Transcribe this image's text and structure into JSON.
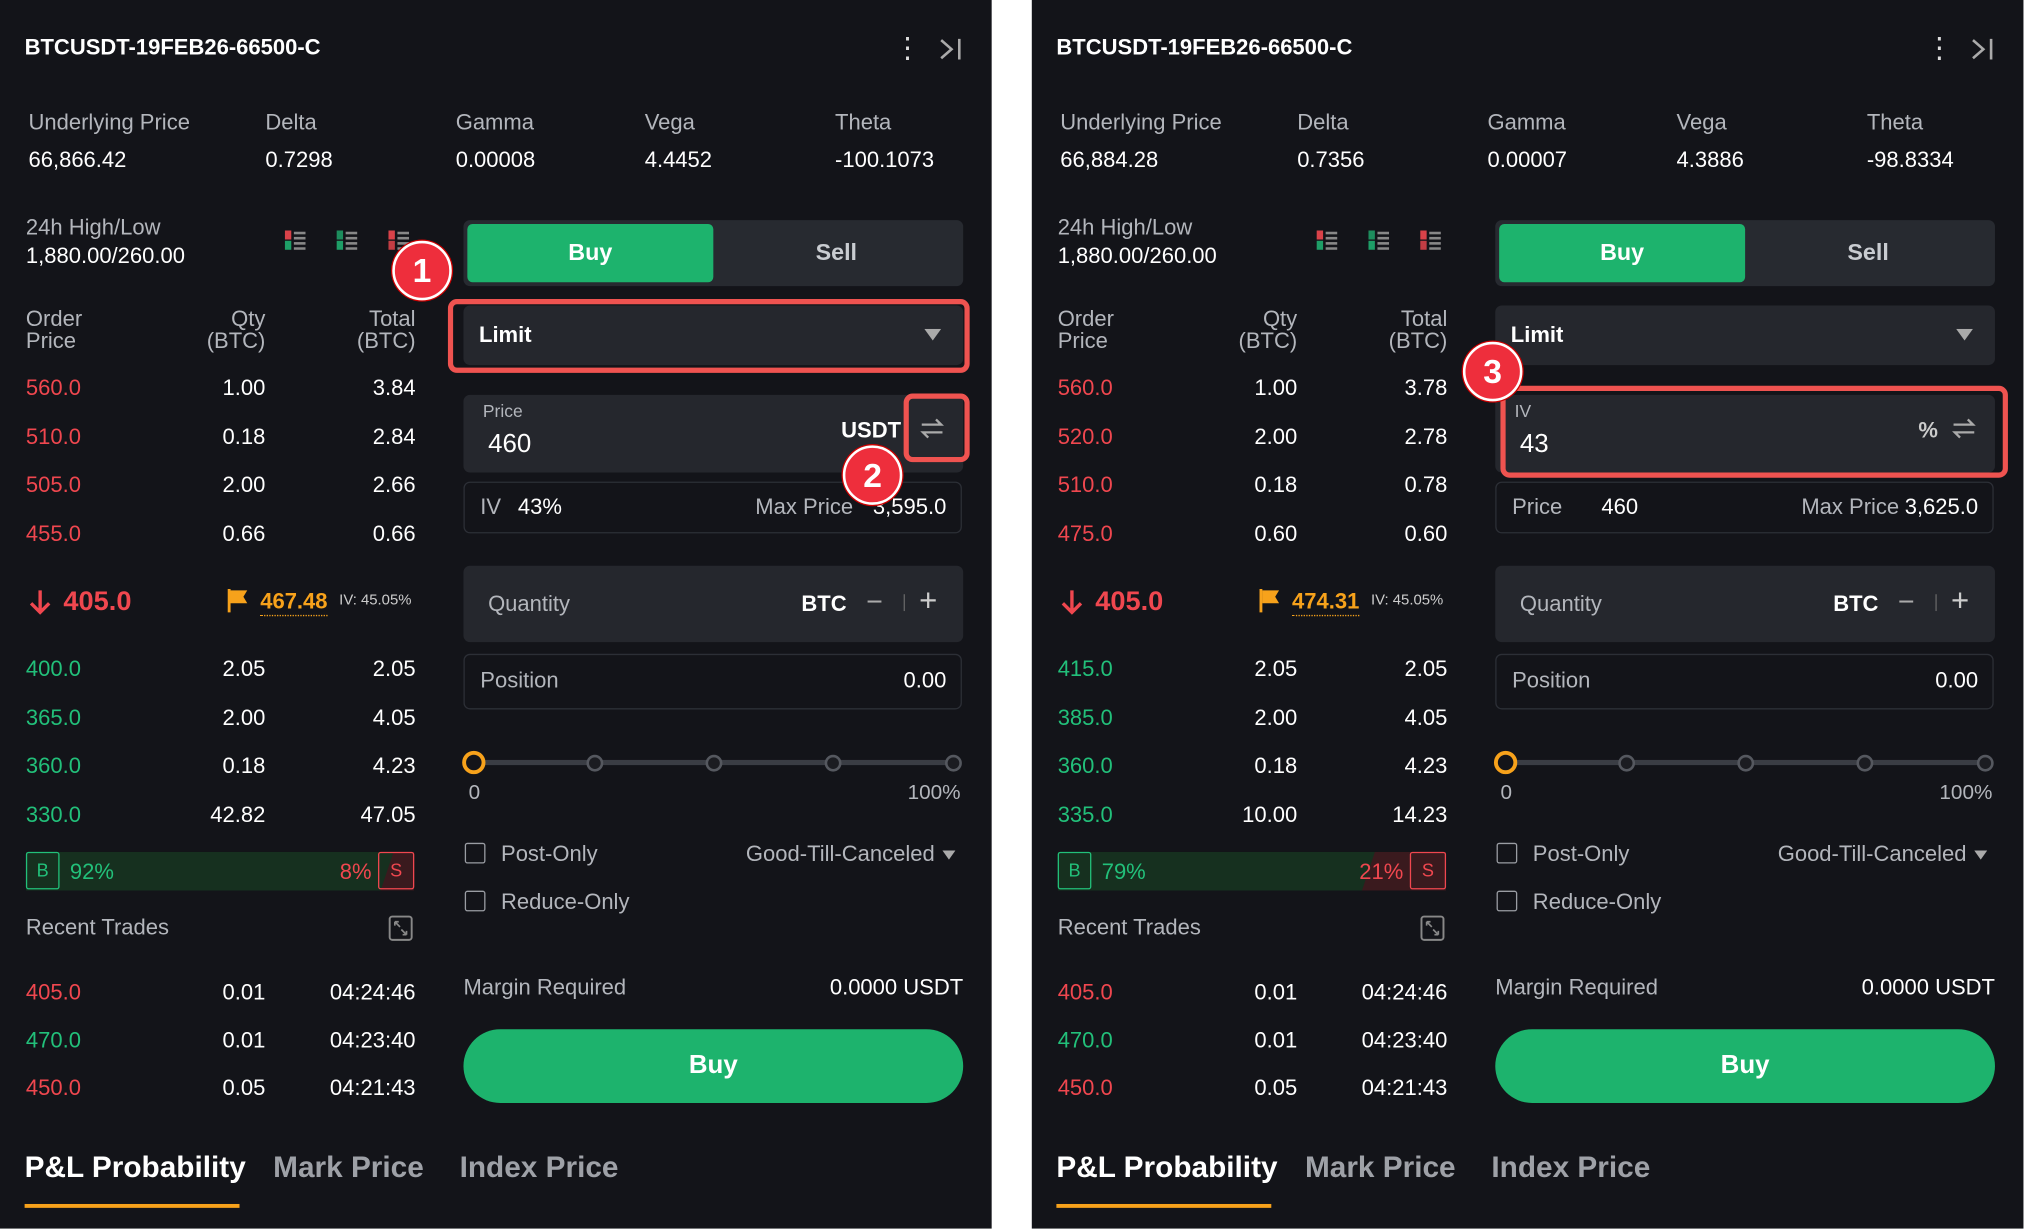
{
  "colors": {
    "buy": "#1db36d",
    "sell_red": "#f0474f",
    "mark_orange": "#f7a21b",
    "annotation": "#ef5350",
    "panel_bg": "#131419"
  },
  "icons": {
    "more": "kebab-vertical-icon",
    "collapse": "collapse-right-icon",
    "swap": "swap-arrows-icon",
    "flag": "flag-icon",
    "down": "arrow-down-icon",
    "expand": "expand-icon",
    "dropdown": "caret-down-icon"
  },
  "panels": [
    {
      "title": "BTCUSDT-19FEB26-66500-C",
      "stats": [
        {
          "label": "Underlying Price",
          "value": "66,866.42"
        },
        {
          "label": "Delta",
          "value": "0.7298"
        },
        {
          "label": "Gamma",
          "value": "0.00008"
        },
        {
          "label": "Vega",
          "value": "4.4452"
        },
        {
          "label": "Theta",
          "value": "-100.1073"
        }
      ],
      "high_low": {
        "label": "24h High/Low",
        "value": "1,880.00/260.00"
      },
      "book_headers": {
        "price1": "Order",
        "price2": "Price",
        "qty1": "Qty",
        "qty2": "(BTC)",
        "total1": "Total",
        "total2": "(BTC)"
      },
      "asks": [
        [
          "560.0",
          "1.00",
          "3.84"
        ],
        [
          "510.0",
          "0.18",
          "2.84"
        ],
        [
          "505.0",
          "2.00",
          "2.66"
        ],
        [
          "455.0",
          "0.66",
          "0.66"
        ]
      ],
      "last_price": "405.0",
      "mark_price": "467.48",
      "mark_iv": "IV: 45.05%",
      "bids": [
        [
          "400.0",
          "2.05",
          "2.05"
        ],
        [
          "365.0",
          "2.00",
          "4.05"
        ],
        [
          "360.0",
          "0.18",
          "4.23"
        ],
        [
          "330.0",
          "42.82",
          "47.05"
        ]
      ],
      "ratio": {
        "b": "B",
        "s": "S",
        "buy_pct": "92%",
        "sell_pct": "8%",
        "buy_value": 92
      },
      "recent_trades_label": "Recent Trades",
      "trades": [
        [
          "405.0",
          "0.01",
          "04:24:46",
          "sell"
        ],
        [
          "470.0",
          "0.01",
          "04:23:40",
          "buy"
        ],
        [
          "450.0",
          "0.05",
          "04:21:43",
          "sell"
        ]
      ],
      "side": {
        "buy": "Buy",
        "sell": "Sell",
        "selected": "Buy"
      },
      "order_type": "Limit",
      "main_field": {
        "label": "Price",
        "value": "460",
        "unit": "USDT"
      },
      "sub_row": {
        "label": "IV",
        "value": "43%",
        "max_label": "Max Price",
        "max_value": "3,595.0"
      },
      "quantity": {
        "label": "Quantity",
        "unit": "BTC",
        "minus": "−",
        "plus": "+"
      },
      "position": {
        "label": "Position",
        "value": "0.00"
      },
      "slider": {
        "min": "0",
        "max": "100%",
        "value": 0
      },
      "post_only": "Post-Only",
      "reduce_only": "Reduce-Only",
      "tif": "Good-Till-Canceled",
      "margin": {
        "label": "Margin Required",
        "value": "0.0000 USDT"
      },
      "submit": "Buy",
      "tabs": [
        "P&L Probability",
        "Mark Price",
        "Index Price"
      ],
      "markers": [
        "1",
        "2"
      ]
    },
    {
      "title": "BTCUSDT-19FEB26-66500-C",
      "stats": [
        {
          "label": "Underlying Price",
          "value": "66,884.28"
        },
        {
          "label": "Delta",
          "value": "0.7356"
        },
        {
          "label": "Gamma",
          "value": "0.00007"
        },
        {
          "label": "Vega",
          "value": "4.3886"
        },
        {
          "label": "Theta",
          "value": "-98.8334"
        }
      ],
      "high_low": {
        "label": "24h High/Low",
        "value": "1,880.00/260.00"
      },
      "book_headers": {
        "price1": "Order",
        "price2": "Price",
        "qty1": "Qty",
        "qty2": "(BTC)",
        "total1": "Total",
        "total2": "(BTC)"
      },
      "asks": [
        [
          "560.0",
          "1.00",
          "3.78"
        ],
        [
          "520.0",
          "2.00",
          "2.78"
        ],
        [
          "510.0",
          "0.18",
          "0.78"
        ],
        [
          "475.0",
          "0.60",
          "0.60"
        ]
      ],
      "last_price": "405.0",
      "mark_price": "474.31",
      "mark_iv": "IV: 45.05%",
      "bids": [
        [
          "415.0",
          "2.05",
          "2.05"
        ],
        [
          "385.0",
          "2.00",
          "4.05"
        ],
        [
          "360.0",
          "0.18",
          "4.23"
        ],
        [
          "335.0",
          "10.00",
          "14.23"
        ]
      ],
      "ratio": {
        "b": "B",
        "s": "S",
        "buy_pct": "79%",
        "sell_pct": "21%",
        "buy_value": 79
      },
      "recent_trades_label": "Recent Trades",
      "trades": [
        [
          "405.0",
          "0.01",
          "04:24:46",
          "sell"
        ],
        [
          "470.0",
          "0.01",
          "04:23:40",
          "buy"
        ],
        [
          "450.0",
          "0.05",
          "04:21:43",
          "sell"
        ]
      ],
      "side": {
        "buy": "Buy",
        "sell": "Sell",
        "selected": "Buy"
      },
      "order_type": "Limit",
      "main_field": {
        "label": "IV",
        "value": "43",
        "unit": "%"
      },
      "sub_row": {
        "label": "Price",
        "value": "460",
        "max_label": "Max Price",
        "max_value": "3,625.0"
      },
      "quantity": {
        "label": "Quantity",
        "unit": "BTC",
        "minus": "−",
        "plus": "+"
      },
      "position": {
        "label": "Position",
        "value": "0.00"
      },
      "slider": {
        "min": "0",
        "max": "100%",
        "value": 0
      },
      "post_only": "Post-Only",
      "reduce_only": "Reduce-Only",
      "tif": "Good-Till-Canceled",
      "margin": {
        "label": "Margin Required",
        "value": "0.0000 USDT"
      },
      "submit": "Buy",
      "tabs": [
        "P&L Probability",
        "Mark Price",
        "Index Price"
      ],
      "markers": [
        "3"
      ]
    }
  ]
}
